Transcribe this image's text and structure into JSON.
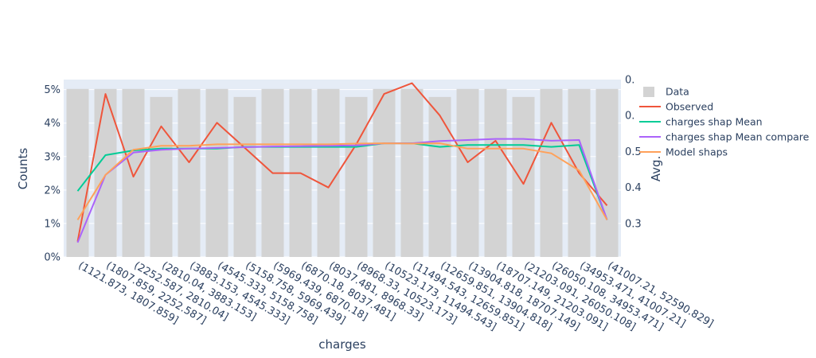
{
  "chart_data": {
    "type": "bar",
    "xlabel": "charges",
    "ylabel": "Counts",
    "y2label": "Avg.",
    "ylim": [
      0,
      0.053
    ],
    "y2lim": [
      0.207,
      0.7
    ],
    "yticks": [
      {
        "value": 0,
        "label": "0%"
      },
      {
        "value": 0.01,
        "label": "1%"
      },
      {
        "value": 0.02,
        "label": "2%"
      },
      {
        "value": 0.03,
        "label": "3%"
      },
      {
        "value": 0.04,
        "label": "4%"
      },
      {
        "value": 0.05,
        "label": "5%"
      }
    ],
    "y2ticks": [
      {
        "value": 0.3,
        "label": "0.3"
      },
      {
        "value": 0.4,
        "label": "0.4"
      },
      {
        "value": 0.5,
        "label": "0.5"
      },
      {
        "value": 0.6,
        "label": "0."
      },
      {
        "value": 0.7,
        "label": "0."
      }
    ],
    "categories": [
      "(1121.873, 1807.859]",
      "(1807.859, 2252.587]",
      "(2252.587, 2810.04]",
      "(2810.04, 3883.153]",
      "(3883.153, 4545.333]",
      "(4545.333, 5158.758]",
      "(5158.758, 5969.439]",
      "(5969.439, 6870.18]",
      "(6870.18, 8037.481]",
      "(8037.481, 8968.33]",
      "(8968.33, 10523.173]",
      "(10523.173, 11494.543]",
      "(11494.543, 12659.851]",
      "(12659.851, 13904.818]",
      "(13904.818, 18707.149]",
      "(18707.149, 21203.091]",
      "(21203.091, 26050.108]",
      "(26050.108, 34953.471]",
      "(34953.471, 41007.21]",
      "(41007.21, 52590.829]"
    ],
    "bars": {
      "name": "Data",
      "color": "#d3d3d3",
      "values": [
        0.0502,
        0.0502,
        0.0502,
        0.0478,
        0.0502,
        0.0502,
        0.0478,
        0.0502,
        0.0502,
        0.0502,
        0.0478,
        0.0502,
        0.0502,
        0.0478,
        0.0502,
        0.0502,
        0.0478,
        0.0502,
        0.0502,
        0.0502
      ]
    },
    "series": [
      {
        "name": "Observed",
        "color": "#ef553b",
        "values": [
          0.25,
          0.66,
          0.43,
          0.57,
          0.47,
          0.58,
          0.51,
          0.44,
          0.44,
          0.4,
          0.52,
          0.66,
          0.69,
          0.6,
          0.47,
          0.53,
          0.41,
          0.58,
          0.44,
          0.35
        ]
      },
      {
        "name": "charges shap Mean",
        "color": "#00cc96",
        "values": [
          0.39,
          0.49,
          0.503,
          0.508,
          0.508,
          0.508,
          0.513,
          0.513,
          0.513,
          0.513,
          0.513,
          0.523,
          0.523,
          0.513,
          0.518,
          0.518,
          0.518,
          0.513,
          0.518,
          0.31
        ]
      },
      {
        "name": "charges shap Mean compare",
        "color": "#ab63fa",
        "values": [
          0.247,
          0.435,
          0.497,
          0.505,
          0.508,
          0.51,
          0.512,
          0.514,
          0.515,
          0.516,
          0.517,
          0.523,
          0.523,
          0.529,
          0.532,
          0.535,
          0.535,
          0.53,
          0.532,
          0.31
        ]
      },
      {
        "name": "Model shaps",
        "color": "#ffa15a",
        "values": [
          0.31,
          0.435,
          0.505,
          0.516,
          0.516,
          0.52,
          0.52,
          0.52,
          0.52,
          0.52,
          0.522,
          0.523,
          0.522,
          0.523,
          0.508,
          0.508,
          0.508,
          0.495,
          0.447,
          0.31
        ]
      }
    ],
    "legend": {
      "position": "right",
      "entries": [
        "Data",
        "Observed",
        "charges shap Mean",
        "charges shap Mean compare",
        "Model shaps"
      ]
    },
    "grid": true
  }
}
